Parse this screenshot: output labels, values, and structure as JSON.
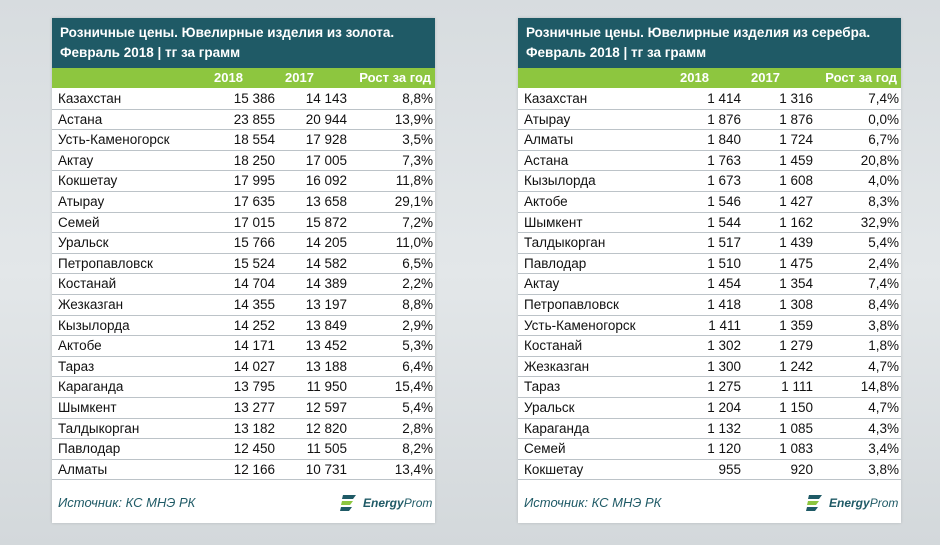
{
  "gold": {
    "title_line1": "Розничные цены. Ювелирные изделия из золота.",
    "title_line2": "Февраль 2018 | тг за грамм",
    "headers": [
      "2018",
      "2017",
      "Рост за год"
    ],
    "rows": [
      [
        "Казахстан",
        "15 386",
        "14 143",
        "8,8%"
      ],
      [
        "Астана",
        "23 855",
        "20 944",
        "13,9%"
      ],
      [
        "Усть-Каменогорск",
        "18 554",
        "17 928",
        "3,5%"
      ],
      [
        "Актау",
        "18 250",
        "17 005",
        "7,3%"
      ],
      [
        "Кокшетау",
        "17 995",
        "16 092",
        "11,8%"
      ],
      [
        "Атырау",
        "17 635",
        "13 658",
        "29,1%"
      ],
      [
        "Семей",
        "17 015",
        "15 872",
        "7,2%"
      ],
      [
        "Уральск",
        "15 766",
        "14 205",
        "11,0%"
      ],
      [
        "Петропавловск",
        "15 524",
        "14 582",
        "6,5%"
      ],
      [
        "Костанай",
        "14 704",
        "14 389",
        "2,2%"
      ],
      [
        "Жезказган",
        "14 355",
        "13 197",
        "8,8%"
      ],
      [
        "Кызылорда",
        "14 252",
        "13 849",
        "2,9%"
      ],
      [
        "Актобе",
        "14 171",
        "13 452",
        "5,3%"
      ],
      [
        "Тараз",
        "14 027",
        "13 188",
        "6,4%"
      ],
      [
        "Караганда",
        "13 795",
        "11 950",
        "15,4%"
      ],
      [
        "Шымкент",
        "13 277",
        "12 597",
        "5,4%"
      ],
      [
        "Талдыкорган",
        "13 182",
        "12 820",
        "2,8%"
      ],
      [
        "Павлодар",
        "12 450",
        "11 505",
        "8,2%"
      ],
      [
        "Алматы",
        "12 166",
        "10 731",
        "13,4%"
      ]
    ],
    "source": "Источник: КС МНЭ РК",
    "logo_bold": "Energy",
    "logo_rest": "Prom"
  },
  "silver": {
    "title_line1": "Розничные цены. Ювелирные изделия из серебра.",
    "title_line2": "Февраль 2018 | тг за грамм",
    "headers": [
      "2018",
      "2017",
      "Рост за год"
    ],
    "rows": [
      [
        "Казахстан",
        "1 414",
        "1 316",
        "7,4%"
      ],
      [
        "Атырау",
        "1 876",
        "1 876",
        "0,0%"
      ],
      [
        "Алматы",
        "1 840",
        "1 724",
        "6,7%"
      ],
      [
        "Астана",
        "1 763",
        "1 459",
        "20,8%"
      ],
      [
        "Кызылорда",
        "1 673",
        "1 608",
        "4,0%"
      ],
      [
        "Актобе",
        "1 546",
        "1 427",
        "8,3%"
      ],
      [
        "Шымкент",
        "1 544",
        "1 162",
        "32,9%"
      ],
      [
        "Талдыкорган",
        "1 517",
        "1 439",
        "5,4%"
      ],
      [
        "Павлодар",
        "1 510",
        "1 475",
        "2,4%"
      ],
      [
        "Актау",
        "1 454",
        "1 354",
        "7,4%"
      ],
      [
        "Петропавловск",
        "1 418",
        "1 308",
        "8,4%"
      ],
      [
        "Усть-Каменогорск",
        "1 411",
        "1 359",
        "3,8%"
      ],
      [
        "Костанай",
        "1 302",
        "1 279",
        "1,8%"
      ],
      [
        "Жезказган",
        "1 300",
        "1 242",
        "4,7%"
      ],
      [
        "Тараз",
        "1 275",
        "1 111",
        "14,8%"
      ],
      [
        "Уральск",
        "1 204",
        "1 150",
        "4,7%"
      ],
      [
        "Караганда",
        "1 132",
        "1 085",
        "4,3%"
      ],
      [
        "Семей",
        "1 120",
        "1 083",
        "3,4%"
      ],
      [
        "Кокшетау",
        "955",
        "920",
        "3,8%"
      ]
    ],
    "source": "Источник: КС МНЭ РК",
    "logo_bold": "Energy",
    "logo_rest": "Prom"
  },
  "colors": {
    "title_bg": "#1f5a66",
    "header_bg": "#8dc63f",
    "row_border": "#bcc3c8"
  },
  "icons": {
    "logo": "energyprom-logo-icon"
  }
}
